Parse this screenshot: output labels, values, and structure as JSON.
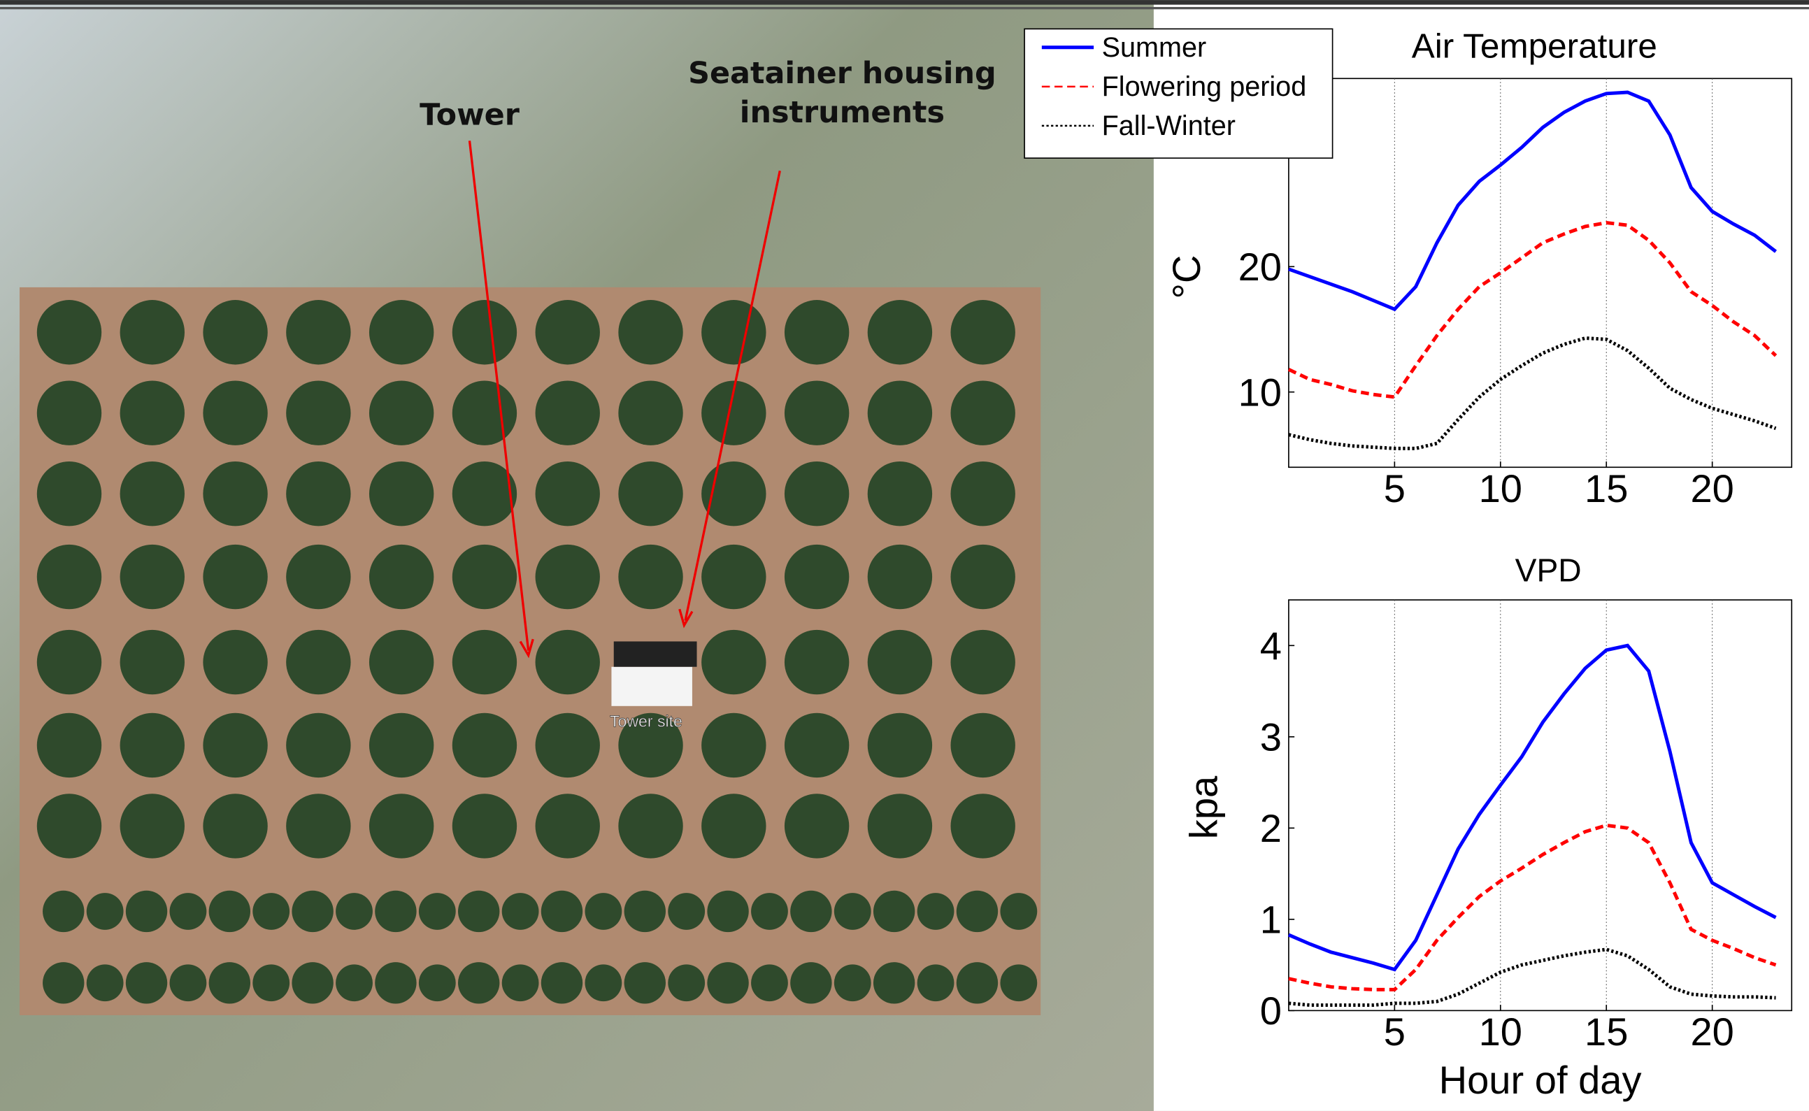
{
  "photo": {
    "labels": {
      "tower": "Tower",
      "seatainer": [
        "Seatainer housing",
        "instruments"
      ],
      "site": "Tower site"
    }
  },
  "chart_data": [
    {
      "type": "line",
      "title": "Air Temperature",
      "y_label": "°C",
      "x": [
        0,
        1,
        2,
        3,
        4,
        5,
        6,
        7,
        8,
        9,
        10,
        11,
        12,
        13,
        14,
        15,
        16,
        17,
        18,
        19,
        20,
        21,
        22,
        23
      ],
      "xlim": [
        0,
        23.75
      ],
      "xticks": [
        5,
        10,
        15,
        20
      ],
      "ylim": [
        4,
        35
      ],
      "yticks": [
        10,
        20
      ],
      "grid": "x",
      "series": [
        {
          "name": "Summer",
          "color": "#0000ff",
          "linestyle": "solid",
          "values": [
            19.8,
            19.2,
            18.6,
            18.0,
            17.3,
            16.6,
            18.4,
            21.9,
            24.9,
            26.8,
            28.1,
            29.5,
            31.1,
            32.3,
            33.2,
            33.8,
            33.9,
            33.2,
            30.5,
            26.3,
            24.4,
            23.4,
            22.5,
            21.2
          ]
        },
        {
          "name": "Flowering period",
          "color": "#ff0000",
          "linestyle": "dashed",
          "values": [
            11.8,
            11.0,
            10.6,
            10.1,
            9.8,
            9.6,
            12.1,
            14.5,
            16.6,
            18.4,
            19.5,
            20.7,
            21.9,
            22.6,
            23.2,
            23.5,
            23.3,
            22.1,
            20.3,
            18.0,
            16.9,
            15.6,
            14.5,
            12.9
          ]
        },
        {
          "name": "Fall-Winter",
          "color": "#000000",
          "linestyle": "dotted",
          "values": [
            6.6,
            6.2,
            5.9,
            5.7,
            5.6,
            5.5,
            5.5,
            5.9,
            7.8,
            9.6,
            11.0,
            12.1,
            13.1,
            13.8,
            14.3,
            14.2,
            13.3,
            11.9,
            10.3,
            9.4,
            8.7,
            8.2,
            7.7,
            7.1
          ]
        }
      ]
    },
    {
      "type": "line",
      "title": "VPD",
      "y_label": "kpa",
      "x_label": "Hour of day",
      "x": [
        0,
        1,
        2,
        3,
        4,
        5,
        6,
        7,
        8,
        9,
        10,
        11,
        12,
        13,
        14,
        15,
        16,
        17,
        18,
        19,
        20,
        21,
        22,
        23
      ],
      "xlim": [
        0,
        23.75
      ],
      "xticks": [
        5,
        10,
        15,
        20
      ],
      "ylim": [
        0,
        4.5
      ],
      "yticks": [
        0,
        1,
        2,
        3,
        4
      ],
      "grid": "x",
      "series": [
        {
          "name": "Summer",
          "color": "#0000ff",
          "linestyle": "solid",
          "values": [
            0.83,
            0.73,
            0.64,
            0.58,
            0.52,
            0.45,
            0.77,
            1.27,
            1.77,
            2.15,
            2.47,
            2.78,
            3.16,
            3.47,
            3.75,
            3.95,
            4.0,
            3.72,
            2.84,
            1.84,
            1.4,
            1.27,
            1.14,
            1.02
          ]
        },
        {
          "name": "Flowering period",
          "color": "#ff0000",
          "linestyle": "dashed",
          "values": [
            0.35,
            0.3,
            0.26,
            0.24,
            0.23,
            0.23,
            0.45,
            0.77,
            1.02,
            1.25,
            1.42,
            1.56,
            1.71,
            1.84,
            1.96,
            2.03,
            2.0,
            1.84,
            1.4,
            0.89,
            0.77,
            0.68,
            0.58,
            0.5
          ]
        },
        {
          "name": "Fall-Winter",
          "color": "#000000",
          "linestyle": "dotted",
          "values": [
            0.08,
            0.06,
            0.06,
            0.06,
            0.06,
            0.08,
            0.08,
            0.1,
            0.18,
            0.3,
            0.42,
            0.5,
            0.55,
            0.6,
            0.64,
            0.67,
            0.6,
            0.45,
            0.26,
            0.18,
            0.16,
            0.15,
            0.15,
            0.14
          ]
        }
      ]
    }
  ]
}
